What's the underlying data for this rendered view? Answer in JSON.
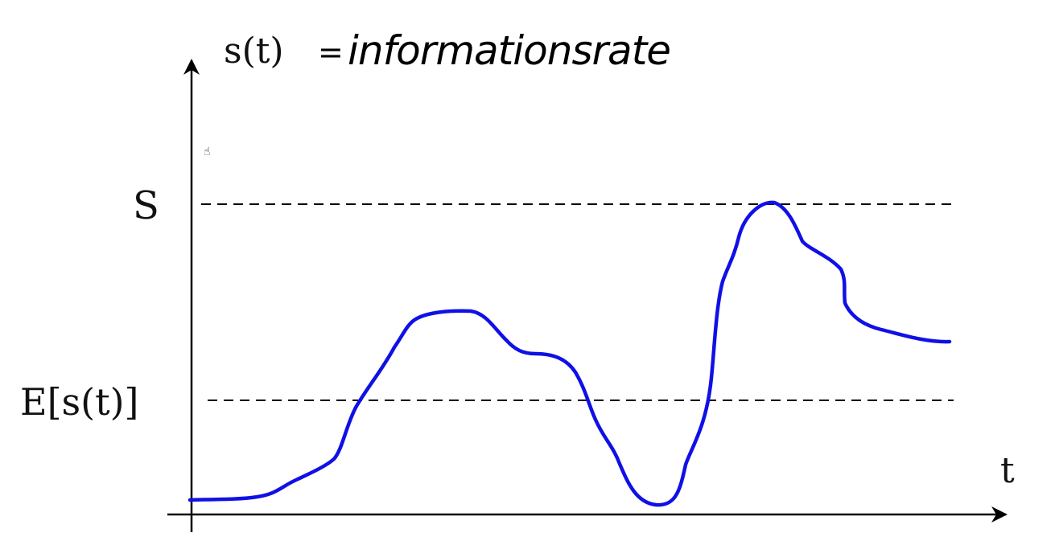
{
  "formula": {
    "lhs": "s(t)",
    "equals": "=",
    "handwritten": "informationsrate"
  },
  "axes": {
    "x_label": "t"
  },
  "levels": {
    "max_label": "S",
    "mean_label": "E[s(t)]"
  },
  "icons": {
    "cursor": "hand-cursor-icon",
    "cursor_glyph": "☝"
  },
  "colors": {
    "curve": "#1010e6",
    "axis": "#000000",
    "dashed": "#000000"
  }
}
